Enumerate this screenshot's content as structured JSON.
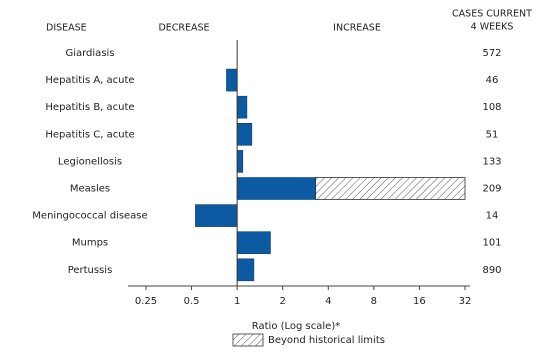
{
  "chart_data": {
    "type": "bar",
    "orientation": "horizontal",
    "log_scale": true,
    "base": 1,
    "headers": {
      "category": "DISEASE",
      "decrease": "DECREASE",
      "increase": "INCREASE",
      "cases": [
        "CASES CURRENT",
        "4 WEEKS"
      ]
    },
    "categories": [
      "Giardiasis",
      "Hepatitis A, acute",
      "Hepatitis B, acute",
      "Hepatitis C, acute",
      "Legionellosis",
      "Measles",
      "Meningococcal disease",
      "Mumps",
      "Pertussis"
    ],
    "values": [
      1.0,
      0.85,
      1.16,
      1.25,
      1.09,
      3.3,
      0.53,
      1.66,
      1.29
    ],
    "cases": [
      572,
      46,
      108,
      51,
      133,
      209,
      14,
      101,
      890
    ],
    "color": "#0b5aa2",
    "beyond_limits": {
      "name": "Beyond historical limits",
      "values": [
        null,
        null,
        null,
        null,
        null,
        32,
        null,
        null,
        null
      ]
    },
    "xlabel": "Ratio (Log scale)*",
    "xlim": [
      0.25,
      32
    ],
    "xticks": [
      0.25,
      0.5,
      1,
      2,
      4,
      8,
      16,
      32
    ]
  }
}
